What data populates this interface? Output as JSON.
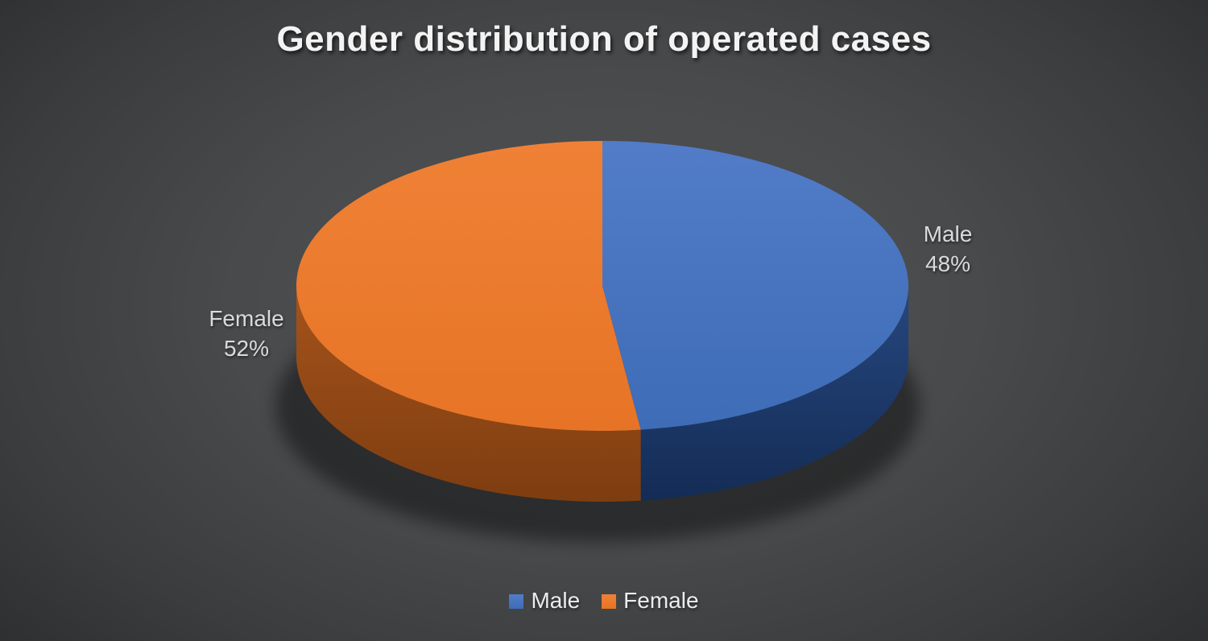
{
  "title": "Gender distribution of operated cases",
  "chart_data": {
    "type": "pie",
    "style": "3d",
    "title": "Gender distribution of operated cases",
    "start_angle_deg": 0,
    "direction": "clockwise",
    "legend_position": "bottom",
    "legend_entries": [
      "Male",
      "Female"
    ],
    "slices": [
      {
        "label": "Male",
        "value": 48,
        "pct_label": "48%",
        "color": "#4472C4",
        "top_color_start": "#527CC8",
        "top_color_end": "#3E6CB6",
        "side_color_start": "#26477F",
        "side_color_end": "#142C55"
      },
      {
        "label": "Female",
        "value": 52,
        "pct_label": "52%",
        "color": "#ED7D31",
        "top_color_start": "#EF8136",
        "top_color_end": "#E77426",
        "side_color_start": "#A5531B",
        "side_color_end": "#7E3D10"
      }
    ]
  },
  "colors": {
    "background_center": "#515355",
    "background_edge": "#262728",
    "title_text": "#F3F3F3",
    "data_label_text": "#DADADA",
    "legend_text": "#ECECEC"
  }
}
